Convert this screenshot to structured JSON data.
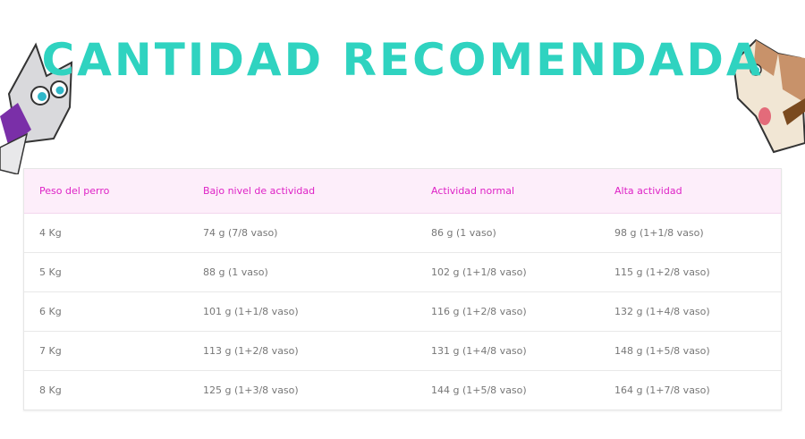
{
  "title": "CANTIDAD RECOMENDADA",
  "colors": {
    "title": "#2fd3c0",
    "header_bg": "#fdeefa",
    "header_text": "#de22c6",
    "cell_text": "#777777"
  },
  "table": {
    "headers": [
      "Peso del perro",
      "Bajo nivel de actividad",
      "Actividad normal",
      "Alta actividad"
    ],
    "rows": [
      [
        "4 Kg",
        "74 g (7/8 vaso)",
        "86 g (1 vaso)",
        "98 g (1+1/8 vaso)"
      ],
      [
        "5 Kg",
        "88 g (1 vaso)",
        "102 g (1+1/8 vaso)",
        "115 g (1+2/8 vaso)"
      ],
      [
        "6 Kg",
        "101 g (1+1/8 vaso)",
        "116 g (1+2/8 vaso)",
        "132 g (1+4/8 vaso)"
      ],
      [
        "7 Kg",
        "113 g (1+2/8 vaso)",
        "131 g (1+4/8 vaso)",
        "148 g (1+5/8 vaso)"
      ],
      [
        "8 Kg",
        "125 g (1+3/8 vaso)",
        "144 g (1+5/8 vaso)",
        "164 g (1+7/8 vaso)"
      ]
    ]
  }
}
